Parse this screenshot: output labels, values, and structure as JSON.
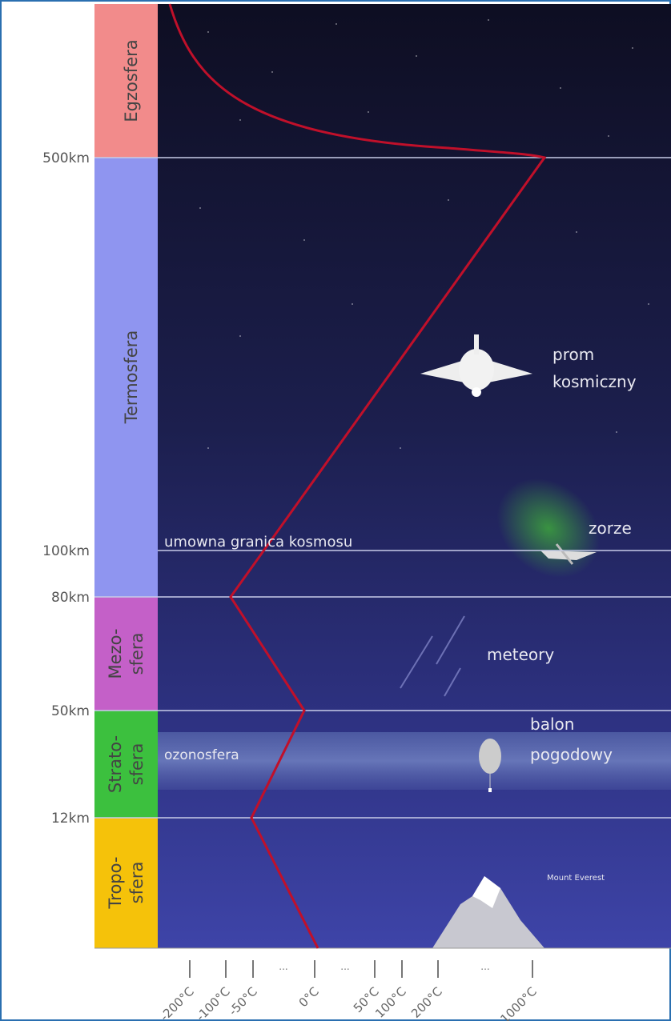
{
  "altitudes": [
    "500km",
    "100km",
    "80km",
    "50km",
    "12km"
  ],
  "layers": [
    {
      "lines": [
        "Egzosfera"
      ]
    },
    {
      "lines": [
        "Termosfera"
      ]
    },
    {
      "lines": [
        "Mezo-",
        "sfera"
      ]
    },
    {
      "lines": [
        "Strato-",
        "sfera"
      ]
    },
    {
      "lines": [
        "Tropo-",
        "sfera"
      ]
    }
  ],
  "temperatures": [
    "-200°C",
    "-100°C",
    "-50°C",
    "0°C",
    "50°C",
    "100°C",
    "200°C",
    "1000°C"
  ],
  "axis_gaps": [
    "...",
    "...",
    "..."
  ],
  "annotations": {
    "space_boundary": "umowna granica kosmosu",
    "shuttle": [
      "prom",
      "kosmiczny"
    ],
    "aurora": "zorze",
    "meteors": "meteory",
    "ozone": "ozonosfera",
    "balloon": [
      "balon",
      "pogodowy"
    ],
    "everest": "Mount Everest"
  }
}
